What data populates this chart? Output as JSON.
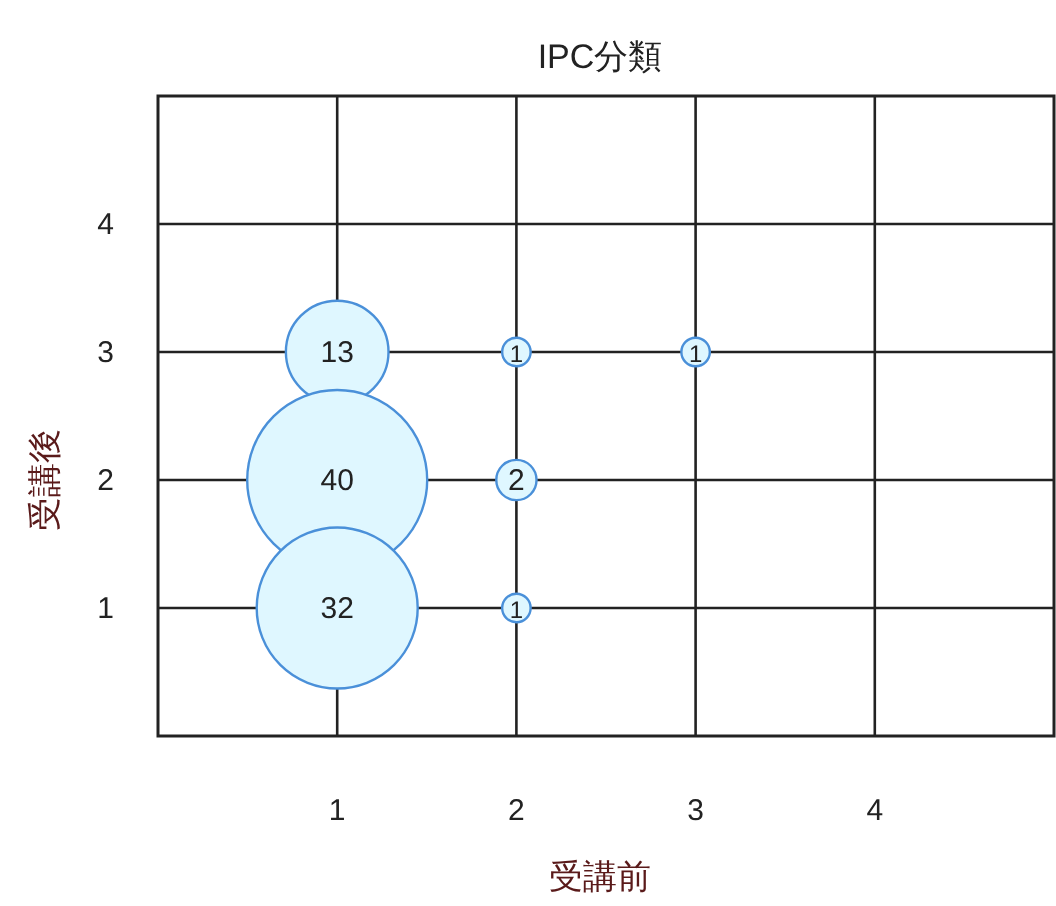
{
  "chart_data": {
    "type": "bubble",
    "title": "IPC分類",
    "xlabel": "受講前",
    "ylabel": "受講後",
    "x": [
      1,
      1,
      1,
      2,
      2,
      2,
      3
    ],
    "values": [
      3,
      2,
      1,
      3,
      2,
      1,
      3
    ],
    "sizes": [
      13,
      40,
      32,
      1,
      2,
      1,
      1
    ],
    "value_labels": [
      "13",
      "40",
      "32",
      "1",
      "2",
      "1",
      "1"
    ],
    "color": "#dff7ff",
    "xlim": [
      0,
      5
    ],
    "ylim": [
      0,
      5
    ],
    "xticks": [
      1,
      2,
      3,
      4
    ],
    "yticks": [
      1,
      2,
      3,
      4
    ],
    "grid": true
  }
}
